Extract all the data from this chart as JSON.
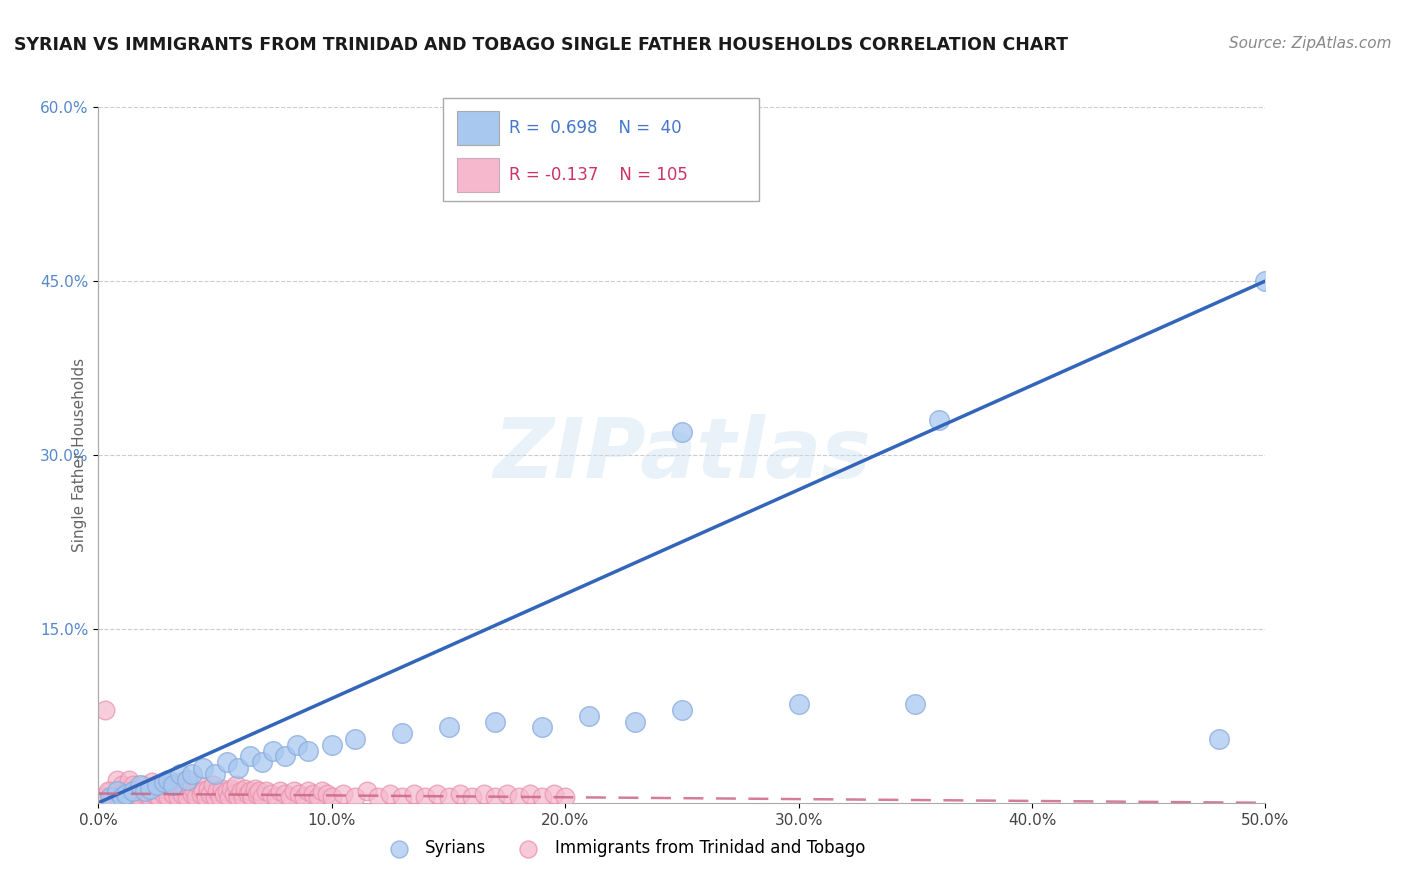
{
  "title": "SYRIAN VS IMMIGRANTS FROM TRINIDAD AND TOBAGO SINGLE FATHER HOUSEHOLDS CORRELATION CHART",
  "source": "Source: ZipAtlas.com",
  "ylabel": "Single Father Households",
  "xlabel": "",
  "xlim": [
    0.0,
    0.5
  ],
  "ylim": [
    0.0,
    0.6
  ],
  "xtick_vals": [
    0.0,
    0.1,
    0.2,
    0.3,
    0.4,
    0.5
  ],
  "ytick_vals": [
    0.15,
    0.3,
    0.45,
    0.6
  ],
  "ytick_labels": [
    "15.0%",
    "30.0%",
    "45.0%",
    "60.0%"
  ],
  "xtick_labels": [
    "0.0%",
    "10.0%",
    "20.0%",
    "30.0%",
    "40.0%",
    "50.0%"
  ],
  "color_syrian": "#a8c8f0",
  "color_syrian_edge": "#88aadd",
  "color_tt": "#f5b8cd",
  "color_tt_edge": "#e890aa",
  "color_syrian_line": "#3366bb",
  "color_tt_line": "#cc6688",
  "watermark": "ZIPatlas",
  "syrian_line_x": [
    0.0,
    0.5
  ],
  "syrian_line_y": [
    0.0,
    0.45
  ],
  "tt_line_x": [
    0.0,
    0.5
  ],
  "tt_line_y": [
    0.008,
    0.0
  ],
  "syrian_points": [
    [
      0.005,
      0.005
    ],
    [
      0.008,
      0.01
    ],
    [
      0.01,
      0.005
    ],
    [
      0.012,
      0.008
    ],
    [
      0.015,
      0.01
    ],
    [
      0.018,
      0.015
    ],
    [
      0.02,
      0.01
    ],
    [
      0.022,
      0.012
    ],
    [
      0.025,
      0.015
    ],
    [
      0.028,
      0.018
    ],
    [
      0.03,
      0.02
    ],
    [
      0.032,
      0.015
    ],
    [
      0.035,
      0.025
    ],
    [
      0.038,
      0.02
    ],
    [
      0.04,
      0.025
    ],
    [
      0.045,
      0.03
    ],
    [
      0.05,
      0.025
    ],
    [
      0.055,
      0.035
    ],
    [
      0.06,
      0.03
    ],
    [
      0.065,
      0.04
    ],
    [
      0.07,
      0.035
    ],
    [
      0.075,
      0.045
    ],
    [
      0.08,
      0.04
    ],
    [
      0.085,
      0.05
    ],
    [
      0.09,
      0.045
    ],
    [
      0.1,
      0.05
    ],
    [
      0.11,
      0.055
    ],
    [
      0.13,
      0.06
    ],
    [
      0.15,
      0.065
    ],
    [
      0.17,
      0.07
    ],
    [
      0.19,
      0.065
    ],
    [
      0.21,
      0.075
    ],
    [
      0.23,
      0.07
    ],
    [
      0.25,
      0.08
    ],
    [
      0.3,
      0.085
    ],
    [
      0.35,
      0.085
    ],
    [
      0.48,
      0.055
    ],
    [
      0.5,
      0.45
    ],
    [
      0.36,
      0.33
    ],
    [
      0.25,
      0.32
    ]
  ],
  "tt_points": [
    [
      0.003,
      0.08
    ],
    [
      0.005,
      0.01
    ],
    [
      0.007,
      0.005
    ],
    [
      0.008,
      0.02
    ],
    [
      0.009,
      0.01
    ],
    [
      0.01,
      0.015
    ],
    [
      0.011,
      0.005
    ],
    [
      0.012,
      0.01
    ],
    [
      0.013,
      0.02
    ],
    [
      0.014,
      0.005
    ],
    [
      0.015,
      0.015
    ],
    [
      0.016,
      0.008
    ],
    [
      0.017,
      0.012
    ],
    [
      0.018,
      0.005
    ],
    [
      0.019,
      0.015
    ],
    [
      0.02,
      0.008
    ],
    [
      0.021,
      0.012
    ],
    [
      0.022,
      0.005
    ],
    [
      0.023,
      0.018
    ],
    [
      0.024,
      0.008
    ],
    [
      0.025,
      0.012
    ],
    [
      0.026,
      0.005
    ],
    [
      0.027,
      0.015
    ],
    [
      0.028,
      0.008
    ],
    [
      0.029,
      0.012
    ],
    [
      0.03,
      0.005
    ],
    [
      0.031,
      0.015
    ],
    [
      0.032,
      0.008
    ],
    [
      0.033,
      0.012
    ],
    [
      0.034,
      0.005
    ],
    [
      0.035,
      0.018
    ],
    [
      0.036,
      0.008
    ],
    [
      0.037,
      0.012
    ],
    [
      0.038,
      0.005
    ],
    [
      0.039,
      0.015
    ],
    [
      0.04,
      0.008
    ],
    [
      0.041,
      0.01
    ],
    [
      0.042,
      0.005
    ],
    [
      0.043,
      0.015
    ],
    [
      0.044,
      0.008
    ],
    [
      0.045,
      0.01
    ],
    [
      0.046,
      0.005
    ],
    [
      0.047,
      0.012
    ],
    [
      0.048,
      0.008
    ],
    [
      0.049,
      0.015
    ],
    [
      0.05,
      0.005
    ],
    [
      0.051,
      0.01
    ],
    [
      0.052,
      0.005
    ],
    [
      0.053,
      0.012
    ],
    [
      0.054,
      0.008
    ],
    [
      0.055,
      0.01
    ],
    [
      0.056,
      0.005
    ],
    [
      0.057,
      0.012
    ],
    [
      0.058,
      0.008
    ],
    [
      0.059,
      0.015
    ],
    [
      0.06,
      0.005
    ],
    [
      0.061,
      0.01
    ],
    [
      0.062,
      0.005
    ],
    [
      0.063,
      0.012
    ],
    [
      0.064,
      0.008
    ],
    [
      0.065,
      0.01
    ],
    [
      0.066,
      0.005
    ],
    [
      0.067,
      0.012
    ],
    [
      0.068,
      0.008
    ],
    [
      0.069,
      0.01
    ],
    [
      0.07,
      0.005
    ],
    [
      0.072,
      0.01
    ],
    [
      0.074,
      0.008
    ],
    [
      0.076,
      0.005
    ],
    [
      0.078,
      0.01
    ],
    [
      0.08,
      0.008
    ],
    [
      0.082,
      0.005
    ],
    [
      0.084,
      0.01
    ],
    [
      0.086,
      0.008
    ],
    [
      0.088,
      0.005
    ],
    [
      0.09,
      0.01
    ],
    [
      0.092,
      0.008
    ],
    [
      0.094,
      0.005
    ],
    [
      0.096,
      0.01
    ],
    [
      0.098,
      0.008
    ],
    [
      0.1,
      0.005
    ],
    [
      0.105,
      0.008
    ],
    [
      0.11,
      0.005
    ],
    [
      0.115,
      0.01
    ],
    [
      0.12,
      0.005
    ],
    [
      0.125,
      0.008
    ],
    [
      0.13,
      0.005
    ],
    [
      0.135,
      0.008
    ],
    [
      0.14,
      0.005
    ],
    [
      0.145,
      0.008
    ],
    [
      0.15,
      0.005
    ],
    [
      0.155,
      0.008
    ],
    [
      0.16,
      0.005
    ],
    [
      0.165,
      0.008
    ],
    [
      0.17,
      0.005
    ],
    [
      0.175,
      0.008
    ],
    [
      0.18,
      0.005
    ],
    [
      0.185,
      0.008
    ],
    [
      0.19,
      0.005
    ],
    [
      0.195,
      0.008
    ],
    [
      0.2,
      0.005
    ],
    [
      0.002,
      0.005
    ],
    [
      0.004,
      0.01
    ],
    [
      0.006,
      0.005
    ]
  ]
}
